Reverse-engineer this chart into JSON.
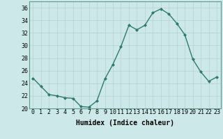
{
  "x": [
    0,
    1,
    2,
    3,
    4,
    5,
    6,
    7,
    8,
    9,
    10,
    11,
    12,
    13,
    14,
    15,
    16,
    17,
    18,
    19,
    20,
    21,
    22,
    23
  ],
  "y": [
    24.8,
    23.5,
    22.2,
    22.0,
    21.7,
    21.6,
    20.3,
    20.2,
    21.2,
    24.7,
    27.0,
    29.8,
    33.2,
    32.5,
    33.2,
    35.2,
    35.8,
    35.0,
    33.5,
    31.7,
    27.8,
    25.8,
    24.3,
    25.0
  ],
  "line_color": "#2d7a6e",
  "marker": "D",
  "markersize": 2.0,
  "linewidth": 1.0,
  "xlabel": "Humidex (Indice chaleur)",
  "ylim": [
    20,
    37
  ],
  "xlim": [
    -0.5,
    23.5
  ],
  "yticks": [
    20,
    22,
    24,
    26,
    28,
    30,
    32,
    34,
    36
  ],
  "xticks": [
    0,
    1,
    2,
    3,
    4,
    5,
    6,
    7,
    8,
    9,
    10,
    11,
    12,
    13,
    14,
    15,
    16,
    17,
    18,
    19,
    20,
    21,
    22,
    23
  ],
  "bg_color": "#cde8e8",
  "grid_color": "#b8d4d4",
  "xlabel_fontsize": 7,
  "tick_fontsize": 6
}
